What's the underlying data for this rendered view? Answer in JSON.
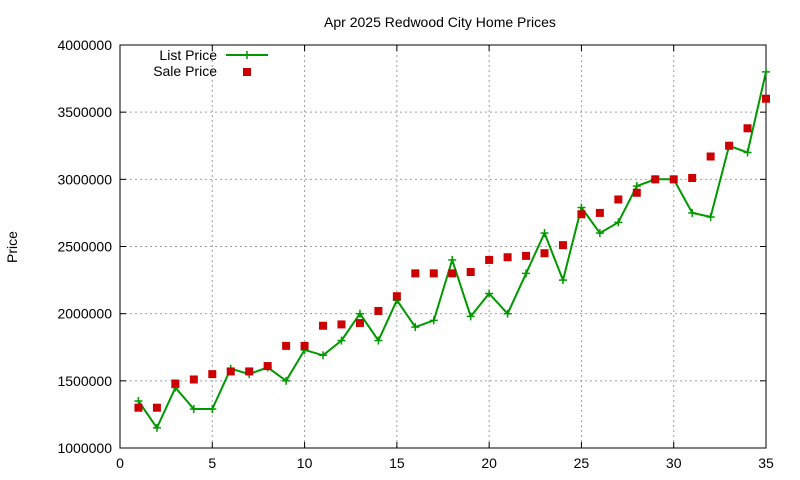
{
  "chart_data": {
    "type": "line",
    "title": "Apr 2025 Redwood City Home Prices",
    "xlabel": "",
    "ylabel": "Price",
    "xlim": [
      0,
      35
    ],
    "ylim": [
      1000000,
      4000000
    ],
    "x_ticks": [
      0,
      5,
      10,
      15,
      20,
      25,
      30,
      35
    ],
    "y_ticks": [
      1000000,
      1500000,
      2000000,
      2500000,
      3000000,
      3500000,
      4000000
    ],
    "grid": true,
    "legend_position": "top-left",
    "series": [
      {
        "name": "List Price",
        "style": "line-plus",
        "color": "#009900",
        "x": [
          1,
          2,
          3,
          4,
          5,
          6,
          7,
          8,
          9,
          10,
          11,
          12,
          13,
          14,
          15,
          16,
          17,
          18,
          19,
          20,
          21,
          22,
          23,
          24,
          25,
          26,
          27,
          28,
          29,
          30,
          31,
          32,
          33,
          34,
          35
        ],
        "values": [
          1350000,
          1150000,
          1450000,
          1290000,
          1290000,
          1590000,
          1550000,
          1600000,
          1500000,
          1730000,
          1690000,
          1800000,
          2000000,
          1800000,
          2100000,
          1900000,
          1950000,
          2400000,
          1980000,
          2150000,
          2000000,
          2300000,
          2600000,
          2250000,
          2790000,
          2600000,
          2680000,
          2950000,
          3000000,
          3000000,
          2750000,
          2720000,
          3250000,
          3200000,
          3800000
        ]
      },
      {
        "name": "Sale Price",
        "style": "square-points",
        "color": "#cc0000",
        "x": [
          1,
          2,
          3,
          4,
          5,
          6,
          7,
          8,
          9,
          10,
          11,
          12,
          13,
          14,
          15,
          16,
          17,
          18,
          19,
          20,
          21,
          22,
          23,
          24,
          25,
          26,
          27,
          28,
          29,
          30,
          31,
          32,
          33,
          34,
          35
        ],
        "values": [
          1300000,
          1300000,
          1480000,
          1510000,
          1550000,
          1570000,
          1570000,
          1610000,
          1760000,
          1760000,
          1910000,
          1920000,
          1930000,
          2020000,
          2130000,
          2300000,
          2300000,
          2300000,
          2310000,
          2400000,
          2420000,
          2430000,
          2450000,
          2510000,
          2740000,
          2750000,
          2850000,
          2900000,
          3000000,
          3000000,
          3010000,
          3170000,
          3250000,
          3380000,
          3600000
        ]
      }
    ]
  }
}
